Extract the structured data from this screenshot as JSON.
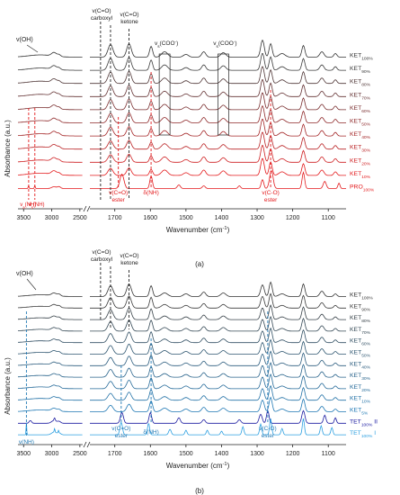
{
  "colors": {
    "ket_dark": "#333333",
    "ket_red": "#e31a1c",
    "ket_blue": "#1f78b4",
    "tet_dark_blue": "#1a1aa0",
    "tet_light_blue": "#2b9fe0"
  },
  "chart_data": [
    {
      "panel_label": "(a)",
      "type": "line",
      "xlabel": "Wavenumber (cm",
      "xlabel_sup": "-1",
      "xlabel_end": ")",
      "ylabel": "Absorbance (a.u.)",
      "x_ticks_left": [
        "3500",
        "3000",
        "2500"
      ],
      "x_ticks_right": [
        "1700",
        "1600",
        "1500",
        "1400",
        "1300",
        "1200",
        "1100"
      ],
      "xlim_left": [
        3600,
        2450
      ],
      "xlim_right": [
        1770,
        1050
      ],
      "series": [
        {
          "name": "KET",
          "sub": "100%"
        },
        {
          "name": "KET",
          "sub": "90%"
        },
        {
          "name": "KET",
          "sub": "80%"
        },
        {
          "name": "KET",
          "sub": "70%"
        },
        {
          "name": "KET",
          "sub": "60%"
        },
        {
          "name": "KET",
          "sub": "50%"
        },
        {
          "name": "KET",
          "sub": "40%"
        },
        {
          "name": "KET",
          "sub": "30%"
        },
        {
          "name": "KET",
          "sub": "20%"
        },
        {
          "name": "KET",
          "sub": "10%"
        },
        {
          "name": "PRO",
          "sub": "100%"
        }
      ],
      "annotations": [
        {
          "text": "v(OH)"
        },
        {
          "text": "v(C=O)",
          "text2": "carboxyl"
        },
        {
          "text": "v(C=O)",
          "text2": "ketone"
        },
        {
          "text": "v",
          "sub": "s",
          "text2": "(COO",
          "sup": "-",
          "end": ")"
        },
        {
          "text": "v",
          "sub": "s",
          "text2": "(COO",
          "sup": "-",
          "end": ")"
        },
        {
          "text": "v",
          "sub": "a",
          "text2": "(NH)"
        },
        {
          "text": "v",
          "sub": "s",
          "text2": "(NH)"
        },
        {
          "text": "v(C=O)",
          "text2": "ester"
        },
        {
          "text": "δ(NH)"
        },
        {
          "text": "v(C-O)",
          "text2": "ester"
        }
      ]
    },
    {
      "panel_label": "(b)",
      "type": "line",
      "xlabel": "Wavenumber (cm",
      "xlabel_sup": "-1",
      "xlabel_end": ")",
      "ylabel": "Absorbance (a.u.)",
      "x_ticks_left": [
        "3500",
        "3000",
        "2500"
      ],
      "x_ticks_right": [
        "1700",
        "1600",
        "1500",
        "1400",
        "1300",
        "1200",
        "1100"
      ],
      "xlim_left": [
        3600,
        2450
      ],
      "xlim_right": [
        1770,
        1050
      ],
      "series": [
        {
          "name": "KET",
          "sub": "100%"
        },
        {
          "name": "KET",
          "sub": "90%"
        },
        {
          "name": "KET",
          "sub": "80%"
        },
        {
          "name": "KET",
          "sub": "70%"
        },
        {
          "name": "KET",
          "sub": "60%"
        },
        {
          "name": "KET",
          "sub": "50%"
        },
        {
          "name": "KET",
          "sub": "40%"
        },
        {
          "name": "KET",
          "sub": "30%"
        },
        {
          "name": "KET",
          "sub": "20%"
        },
        {
          "name": "KET",
          "sub": "10%"
        },
        {
          "name": "KET",
          "sub": "5%"
        },
        {
          "name": "TET",
          "sub": "100%",
          "suffix": " II"
        },
        {
          "name": "TET",
          "sub": "100%",
          "suffix": " I"
        }
      ],
      "annotations": [
        {
          "text": "v(OH)"
        },
        {
          "text": "v(C=O)",
          "text2": "carboxyl"
        },
        {
          "text": "v(C=O)",
          "text2": "ketone"
        },
        {
          "text": "v(NH)"
        },
        {
          "text": "v(C=O)",
          "text2": "ester"
        },
        {
          "text": "δ(NH)"
        },
        {
          "text": "v(C-O)",
          "text2": "ester"
        }
      ]
    }
  ]
}
